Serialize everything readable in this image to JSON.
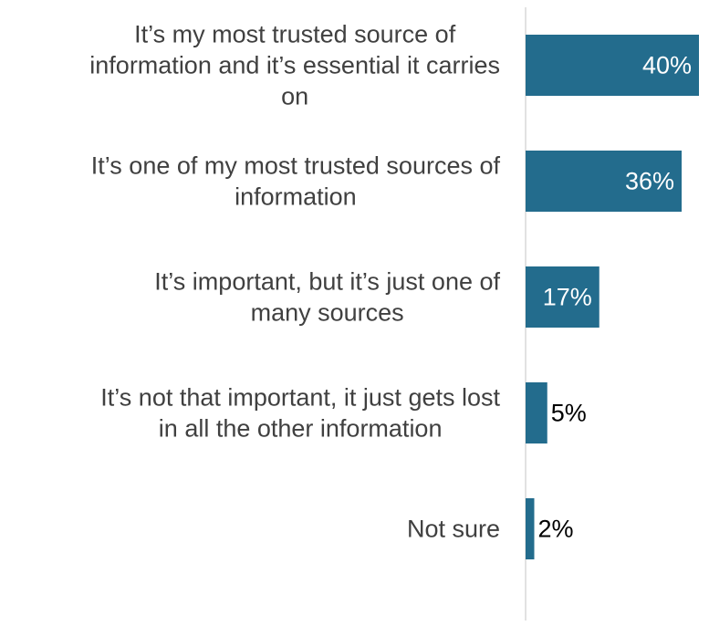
{
  "chart_data": {
    "type": "bar",
    "orientation": "horizontal",
    "categories": [
      "It’s my most trusted source of information and it’s essential it carries on",
      "It’s one of my most trusted sources of information",
      "It’s important, but it’s just one of many sources",
      "It’s not that important, it just gets lost in all the other information",
      "Not sure"
    ],
    "category_lines": [
      [
        "It’s my most trusted source of",
        "information and it’s essential it carries",
        "on"
      ],
      [
        "It’s one of my most trusted sources of",
        "information"
      ],
      [
        "It’s important, but it’s just one of",
        "many sources"
      ],
      [
        "It’s not that important, it just gets lost",
        "in all the other information"
      ],
      [
        "Not sure"
      ]
    ],
    "values": [
      40,
      36,
      17,
      5,
      2
    ],
    "value_labels": [
      "40%",
      "36%",
      "17%",
      "5%",
      "2%"
    ],
    "xlim": [
      0,
      40
    ],
    "grid": false,
    "legend": "none",
    "colors": {
      "bar": "#236c8d",
      "axis": "#d9d9d9",
      "category_text": "#404040",
      "label_inside": "#ffffff",
      "label_outside": "#000000"
    }
  }
}
